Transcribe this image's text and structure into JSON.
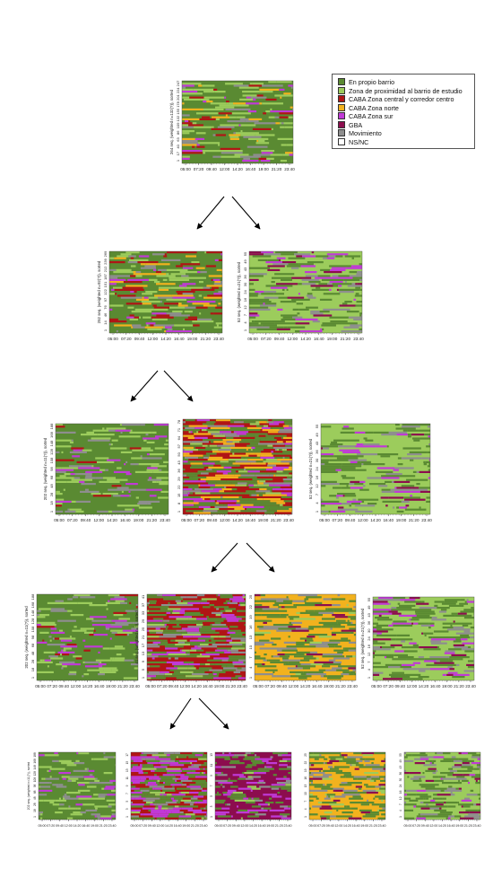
{
  "legend": {
    "items": [
      {
        "label": "En propio barrio",
        "color": "#5a8a32"
      },
      {
        "label": "Zona de proximidad al barrio de estudio",
        "color": "#9ccc5c"
      },
      {
        "label": "CABA Zona central y corredor centro",
        "color": "#b01515"
      },
      {
        "label": "CABA Zona norte",
        "color": "#f2b21e"
      },
      {
        "label": "CABA Zona sur",
        "color": "#c03ad6"
      },
      {
        "label": "GBA",
        "color": "#8c0d4e"
      },
      {
        "label": "Movimiento",
        "color": "#8e8e8e"
      },
      {
        "label": "NS/NC",
        "color": "#ffffff"
      }
    ]
  },
  "time_ticks": [
    "05:00",
    "07:20",
    "09:40",
    "12:00",
    "14:20",
    "16:40",
    "19:00",
    "21:20",
    "23:40"
  ],
  "chart_data": [
    {
      "type": "heatmap",
      "level": 1,
      "ylabel": "264 seq. (weighted n=132(?)), sorted",
      "yticks": [
        "1",
        "17",
        "40",
        "63",
        "86",
        "109",
        "132",
        "155",
        "178",
        "201",
        "224",
        "247"
      ],
      "dominant": "En propio barrio",
      "mix": {
        "En propio barrio": 0.6,
        "Zona de proximidad al barrio de estudio": 0.18,
        "CABA Zona central y corredor centro": 0.07,
        "CABA Zona norte": 0.04,
        "CABA Zona sur": 0.05,
        "Movimiento": 0.06
      }
    },
    {
      "type": "heatmap",
      "level": 2,
      "ylabel": "252 seq. (weighted n=92(?)), sorted",
      "yticks": [
        "1",
        "14",
        "46",
        "76",
        "97",
        "122",
        "151",
        "187",
        "212",
        "239",
        "269"
      ],
      "dominant": "En propio barrio",
      "mix": {
        "En propio barrio": 0.55,
        "Zona de proximidad al barrio de estudio": 0.15,
        "CABA Zona central y corredor centro": 0.1,
        "CABA Zona norte": 0.06,
        "CABA Zona sur": 0.07,
        "Movimiento": 0.07
      }
    },
    {
      "type": "heatmap",
      "level": 2,
      "ylabel": "52 seq. (weighted n=21(?)), sorted",
      "yticks": [
        "1",
        "4",
        "7",
        "12",
        "16",
        "24",
        "30",
        "36",
        "43",
        "49",
        "55"
      ],
      "dominant": "Zona de proximidad al barrio de estudio",
      "mix": {
        "En propio barrio": 0.25,
        "Zona de proximidad al barrio de estudio": 0.55,
        "CABA Zona sur": 0.05,
        "GBA": 0.05,
        "Movimiento": 0.1
      }
    },
    {
      "type": "heatmap",
      "level": 3,
      "ylabel": "202 seq. (weighted n=11(?)), sorted",
      "yticks": [
        "1",
        "18",
        "28",
        "48",
        "68",
        "98",
        "108",
        "128",
        "148",
        "168",
        "188"
      ],
      "dominant": "En propio barrio",
      "mix": {
        "En propio barrio": 0.7,
        "Zona de proximidad al barrio de estudio": 0.15,
        "CABA Zona central y corredor centro": 0.03,
        "CABA Zona sur": 0.05,
        "Movimiento": 0.07
      }
    },
    {
      "type": "heatmap",
      "level": 3,
      "ylabel": "",
      "yticks": [
        "1",
        "8",
        "15",
        "22",
        "29",
        "36",
        "43",
        "50",
        "57",
        "64",
        "71",
        "78"
      ],
      "dominant": "CABA Zona central y corredor centro",
      "mix": {
        "En propio barrio": 0.3,
        "Zona de proximidad al barrio de estudio": 0.08,
        "CABA Zona central y corredor centro": 0.28,
        "CABA Zona norte": 0.15,
        "CABA Zona sur": 0.1,
        "Movimiento": 0.09
      }
    },
    {
      "type": "heatmap",
      "level": 3,
      "ylabel": "52 seq. (weighted n=21(?)), sorted",
      "yticks": [
        "1",
        "4",
        "7",
        "12",
        "16",
        "24",
        "30",
        "36",
        "43",
        "49",
        "55"
      ],
      "dominant": "Zona de proximidad al barrio de estudio",
      "mix": {
        "En propio barrio": 0.25,
        "Zona de proximidad al barrio de estudio": 0.55,
        "CABA Zona sur": 0.05,
        "GBA": 0.05,
        "Movimiento": 0.1
      }
    },
    {
      "type": "heatmap",
      "level": 4,
      "ylabel": "202 seq. (weighted n=11(?)), sorted",
      "yticks": [
        "1",
        "18",
        "28",
        "48",
        "68",
        "98",
        "108",
        "128",
        "148",
        "168",
        "188"
      ],
      "dominant": "En propio barrio",
      "mix": {
        "En propio barrio": 0.7,
        "Zona de proximidad al barrio de estudio": 0.15,
        "CABA Zona central y corredor centro": 0.03,
        "CABA Zona sur": 0.05,
        "Movimiento": 0.07
      }
    },
    {
      "type": "heatmap",
      "level": 4,
      "ylabel": "41 seq. (weighted n=?), sorted",
      "yticks": [
        "1",
        "5",
        "9",
        "13",
        "17",
        "21",
        "25",
        "29",
        "33",
        "37",
        "41"
      ],
      "dominant": "CABA Zona central y corredor centro",
      "mix": {
        "En propio barrio": 0.3,
        "CABA Zona central y corredor centro": 0.35,
        "CABA Zona sur": 0.15,
        "Movimiento": 0.12,
        "Zona de proximidad al barrio de estudio": 0.08
      }
    },
    {
      "type": "heatmap",
      "level": 4,
      "ylabel": "",
      "yticks": [
        "1",
        "4",
        "7",
        "10",
        "13",
        "16",
        "19",
        "22",
        "25"
      ],
      "dominant": "CABA Zona norte",
      "mix": {
        "En propio barrio": 0.3,
        "CABA Zona norte": 0.5,
        "Movimiento": 0.1,
        "GBA": 0.05,
        "Zona de proximidad al barrio de estudio": 0.05
      }
    },
    {
      "type": "heatmap",
      "level": 4,
      "ylabel": "52 seq. (weighted n=21(?)), sorted",
      "yticks": [
        "1",
        "4",
        "7",
        "12",
        "16",
        "24",
        "30",
        "36",
        "43",
        "49",
        "55"
      ],
      "dominant": "Zona de proximidad al barrio de estudio",
      "mix": {
        "En propio barrio": 0.25,
        "Zona de proximidad al barrio de estudio": 0.55,
        "CABA Zona sur": 0.05,
        "GBA": 0.05,
        "Movimiento": 0.1
      }
    },
    {
      "type": "heatmap",
      "level": 5,
      "ylabel": "202 seq. (weighted n=11(?)), sorted",
      "yticks": [
        "1",
        "18",
        "28",
        "48",
        "68",
        "98",
        "108",
        "128",
        "148",
        "168",
        "188"
      ],
      "dominant": "En propio barrio",
      "mix": {
        "En propio barrio": 0.7,
        "Zona de proximidad al barrio de estudio": 0.15,
        "CABA Zona sur": 0.05,
        "Movimiento": 0.1
      }
    },
    {
      "type": "heatmap",
      "level": 5,
      "ylabel": "",
      "yticks": [
        "1",
        "3",
        "5",
        "7",
        "9",
        "11",
        "13",
        "15",
        "17"
      ],
      "dominant": "CABA Zona central y corredor centro",
      "mix": {
        "En propio barrio": 0.3,
        "CABA Zona central y corredor centro": 0.3,
        "CABA Zona sur": 0.25,
        "Movimiento": 0.1,
        "Zona de proximidad al barrio de estudio": 0.05
      }
    },
    {
      "type": "heatmap",
      "level": 5,
      "ylabel": "",
      "yticks": [
        "1",
        "3",
        "5",
        "7",
        "9",
        "11",
        "13"
      ],
      "dominant": "GBA",
      "mix": {
        "GBA": 0.55,
        "En propio barrio": 0.2,
        "CABA Zona sur": 0.12,
        "Movimiento": 0.1,
        "Zona de proximidad al barrio de estudio": 0.03
      }
    },
    {
      "type": "heatmap",
      "level": 5,
      "ylabel": "",
      "yticks": [
        "1",
        "4",
        "7",
        "10",
        "13",
        "16",
        "19",
        "22",
        "25"
      ],
      "dominant": "CABA Zona norte",
      "mix": {
        "En propio barrio": 0.3,
        "CABA Zona norte": 0.5,
        "Movimiento": 0.1,
        "GBA": 0.05,
        "Zona de proximidad al barrio de estudio": 0.05
      }
    },
    {
      "type": "heatmap",
      "level": 5,
      "ylabel": "",
      "yticks": [
        "1",
        "4",
        "7",
        "12",
        "16",
        "24",
        "30",
        "36",
        "43",
        "49",
        "55"
      ],
      "dominant": "Zona de proximidad al barrio de estudio",
      "mix": {
        "En propio barrio": 0.25,
        "Zona de proximidad al barrio de estudio": 0.55,
        "CABA Zona sur": 0.05,
        "GBA": 0.05,
        "Movimiento": 0.1
      }
    }
  ]
}
